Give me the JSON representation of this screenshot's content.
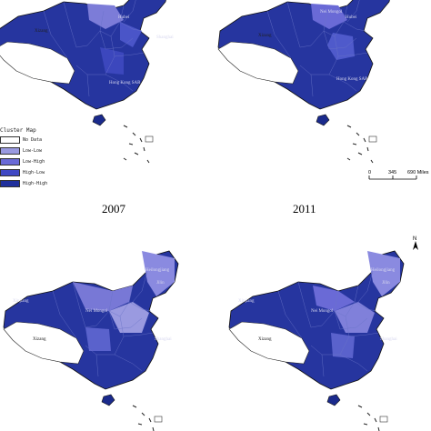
{
  "panels": [
    {
      "year": "2007",
      "labels": [
        {
          "key": "xizang",
          "text": "Xizang"
        },
        {
          "key": "hk",
          "text": "Hong Kong SAR"
        },
        {
          "key": "sh",
          "text": "Shanghai"
        },
        {
          "key": "hb",
          "text": "Hubei"
        }
      ]
    },
    {
      "year": "2011",
      "labels": [
        {
          "key": "xizang",
          "text": "Xizang"
        },
        {
          "key": "hk",
          "text": "Hong Kong SAR"
        },
        {
          "key": "nm",
          "text": "Nei Mongol"
        },
        {
          "key": "hb",
          "text": "Hubei"
        }
      ]
    },
    {
      "year": "",
      "labels": [
        {
          "key": "xizang",
          "text": "Xizang"
        },
        {
          "key": "xj",
          "text": "Xinjiang"
        },
        {
          "key": "nm",
          "text": "Nei Mongol"
        },
        {
          "key": "hlj",
          "text": "Heilongjiang"
        },
        {
          "key": "jl",
          "text": "Jilin"
        },
        {
          "key": "sh",
          "text": "Shanghai"
        }
      ]
    },
    {
      "year": "",
      "labels": [
        {
          "key": "xizang",
          "text": "Xizang"
        },
        {
          "key": "xj",
          "text": "Xinjiang"
        },
        {
          "key": "nm",
          "text": "Nei Mongol"
        },
        {
          "key": "hlj",
          "text": "Heilongjiang"
        },
        {
          "key": "jl",
          "text": "Jilin"
        },
        {
          "key": "sh",
          "text": "Shanghai"
        }
      ]
    }
  ],
  "legend": {
    "title": "Cluster Map",
    "items": [
      {
        "label": "No Data",
        "color": "#ffffff"
      },
      {
        "label": "Low-Low",
        "color": "#9a9ae0"
      },
      {
        "label": "Low-High",
        "color": "#6a6ad6"
      },
      {
        "label": "High-Low",
        "color": "#3f48c4"
      },
      {
        "label": "High-High",
        "color": "#1f2f9c"
      }
    ]
  },
  "scale": {
    "ticks": [
      "0",
      "345",
      "690 Miles"
    ]
  },
  "north": {
    "label": "N"
  }
}
